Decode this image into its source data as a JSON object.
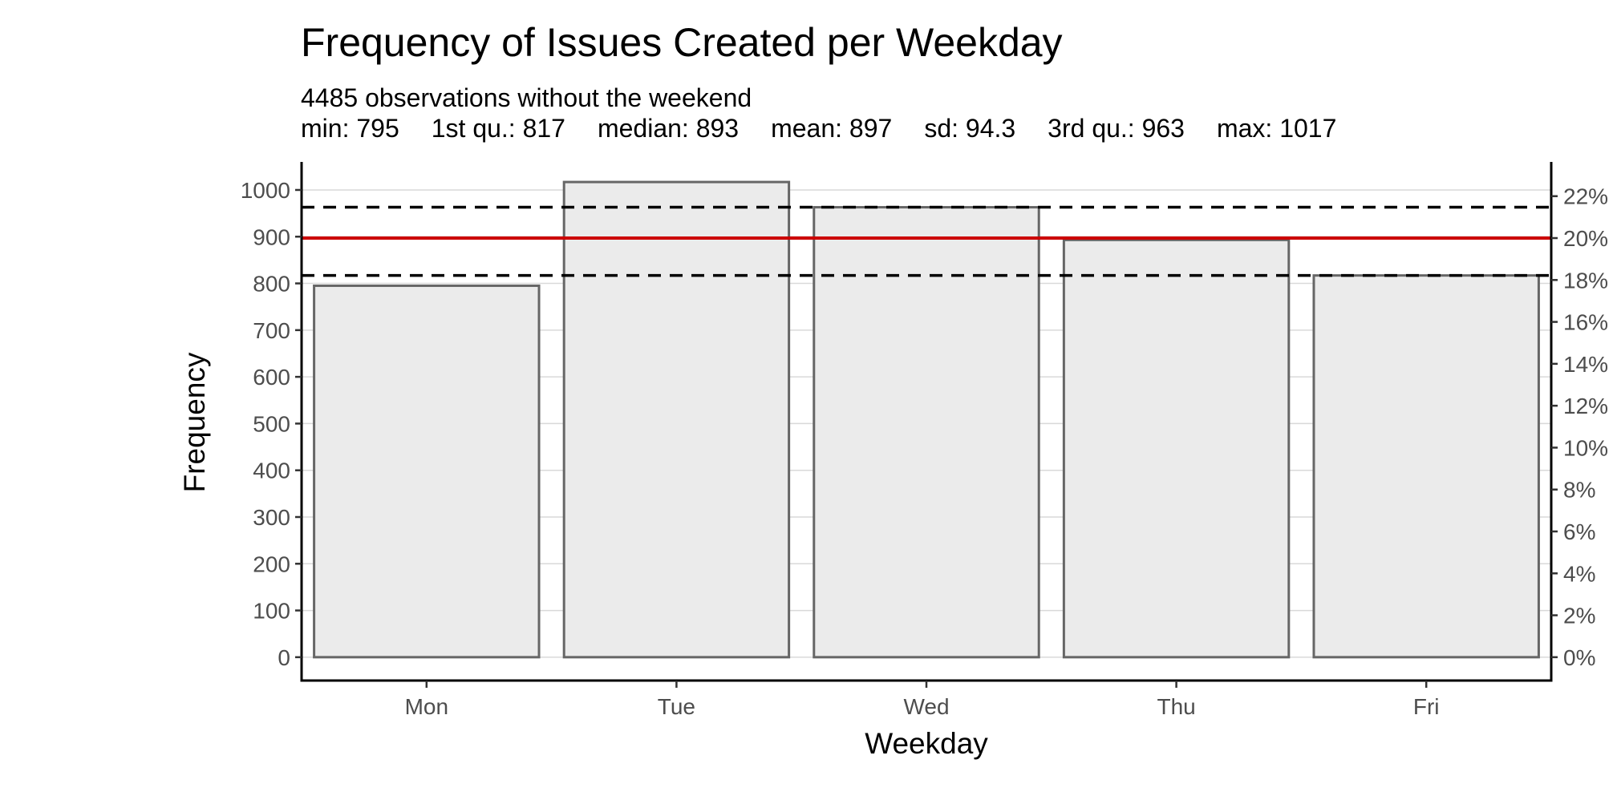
{
  "chart_data": {
    "type": "bar",
    "title": "Frequency of Issues Created per Weekday",
    "subtitle_line1": "4485 observations without the weekend",
    "stats": [
      "min: 795",
      "1st qu.: 817",
      "median: 893",
      "mean: 897",
      "sd: 94.3",
      "3rd qu.: 963",
      "max: 1017"
    ],
    "xlabel": "Weekday",
    "ylabel": "Frequency",
    "categories": [
      "Mon",
      "Tue",
      "Wed",
      "Thu",
      "Fri"
    ],
    "values": [
      795,
      1017,
      963,
      893,
      817
    ],
    "ylim": [
      -50,
      1060
    ],
    "y_ticks": [
      0,
      100,
      200,
      300,
      400,
      500,
      600,
      700,
      800,
      900,
      1000
    ],
    "y2_ticks": [
      "0%",
      "2%",
      "4%",
      "6%",
      "8%",
      "10%",
      "12%",
      "14%",
      "16%",
      "18%",
      "20%",
      "22%"
    ],
    "y2_total": 4485,
    "reference_lines": {
      "mean": 897,
      "quartile_1": 817,
      "quartile_3": 963
    },
    "grid": true,
    "colors": {
      "bar_fill": "#ebebeb",
      "bar_stroke": "#666666",
      "mean_line": "#cc0000",
      "quartile_line": "#000000",
      "grid": "#d9d9d9"
    }
  }
}
